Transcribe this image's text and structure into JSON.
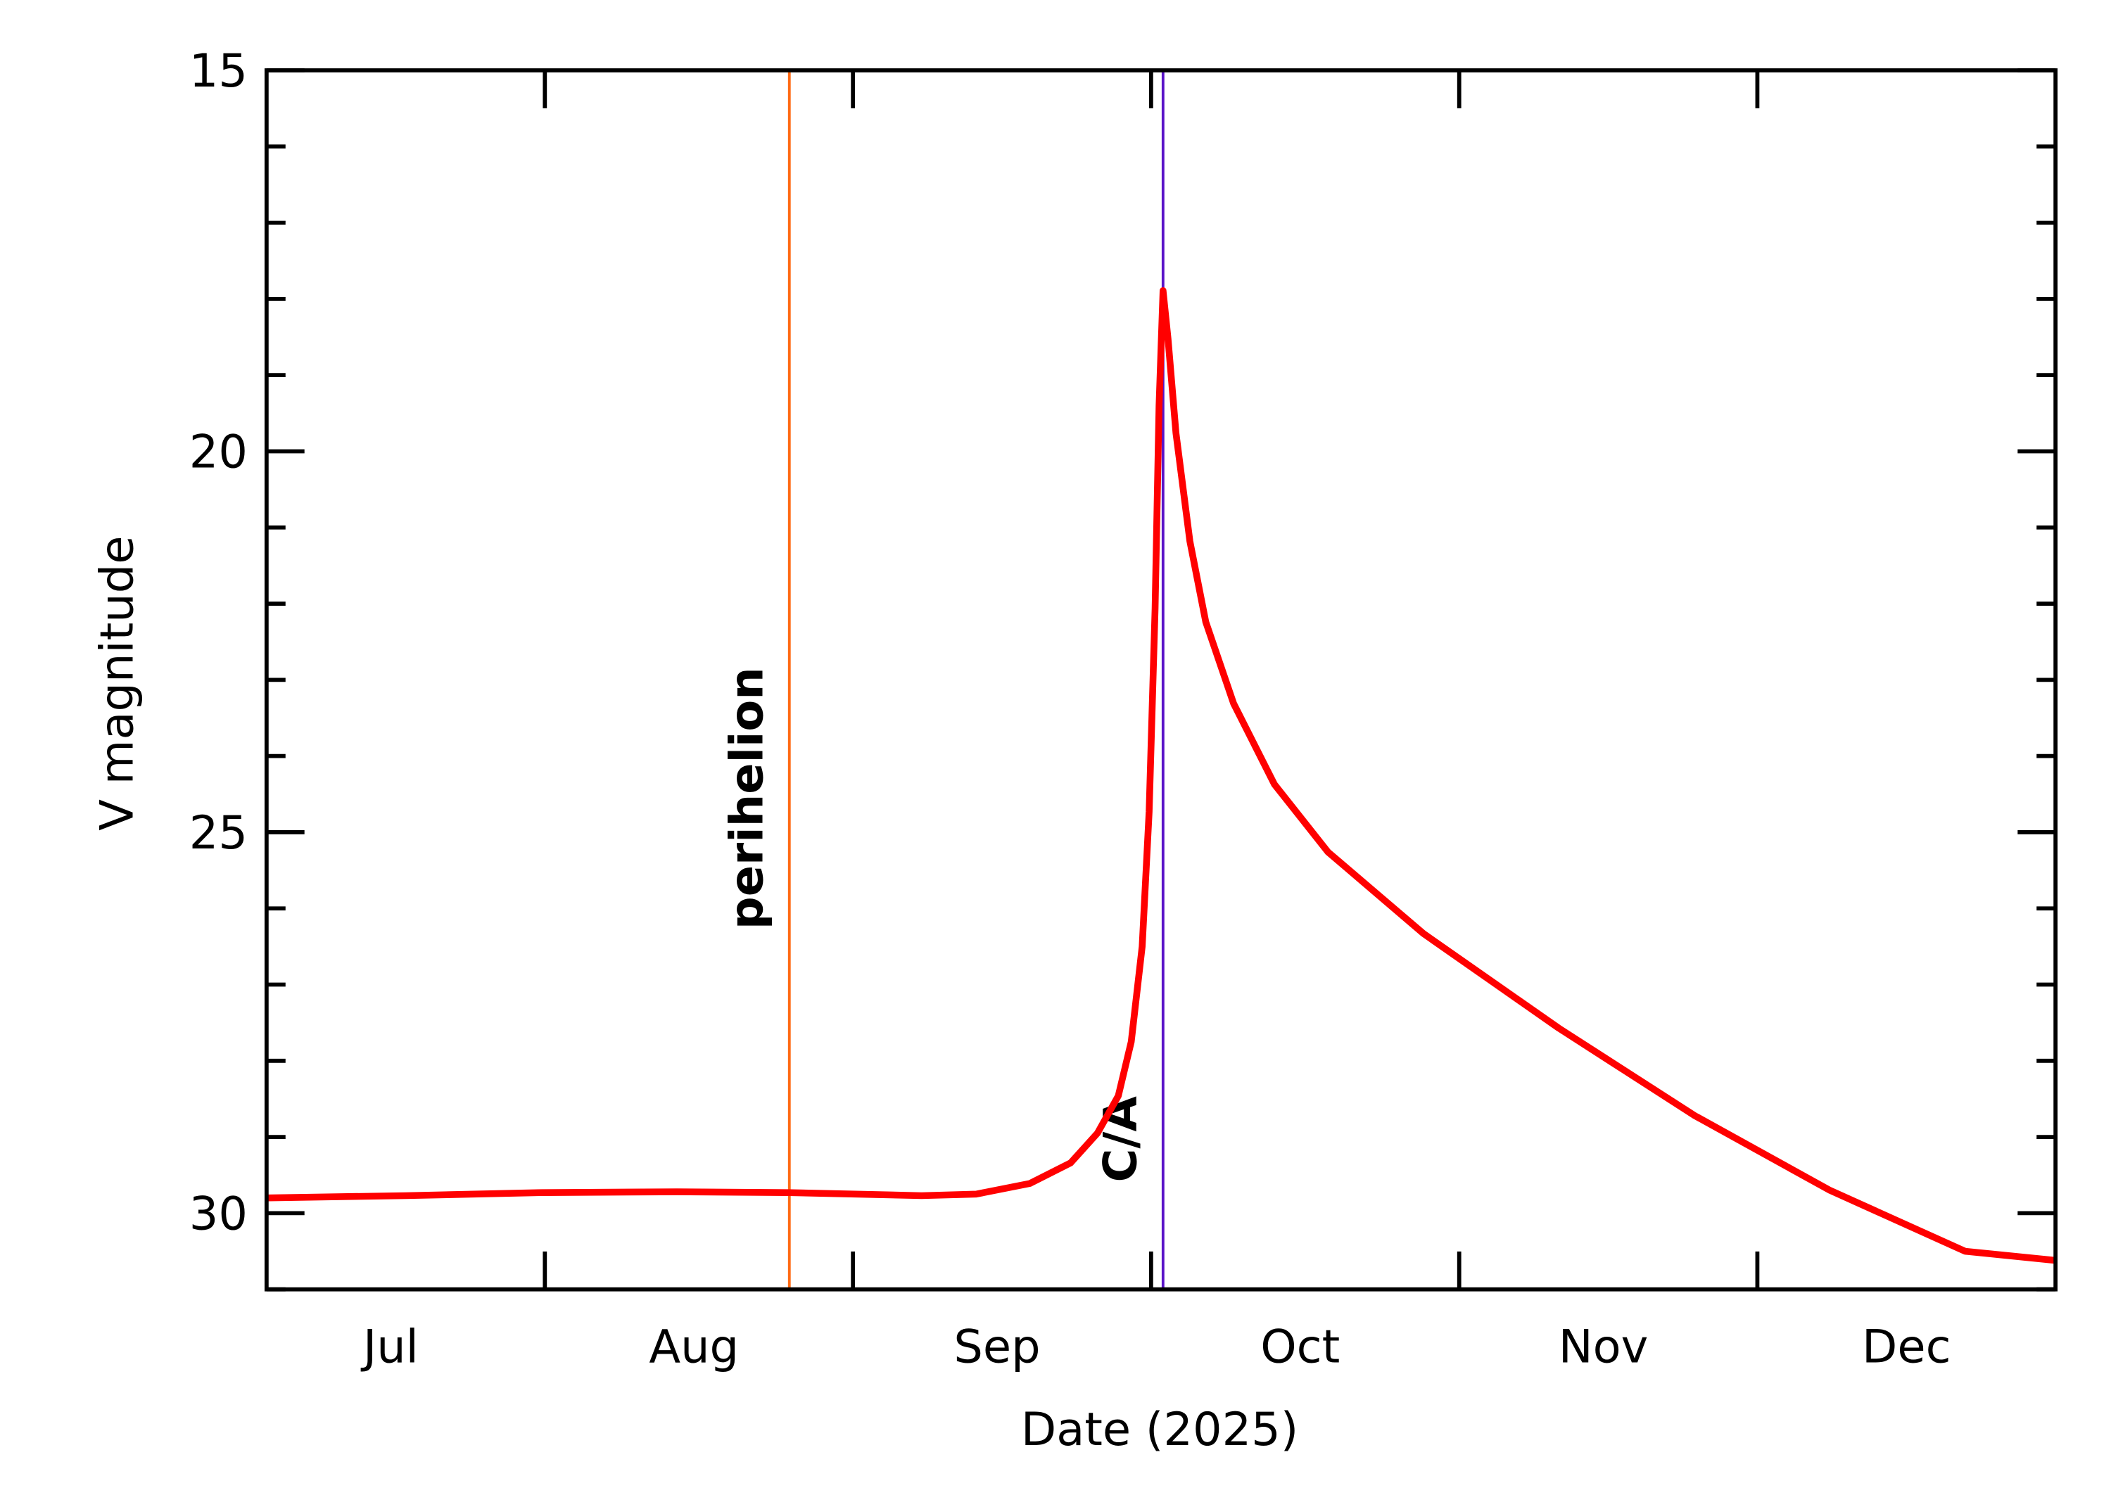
{
  "chart_data": {
    "type": "line",
    "x_label": "Date (2025)",
    "y_label": "V magnitude",
    "x": [
      185,
      199,
      212.7,
      226.3,
      237.5,
      250.9,
      256.4,
      261.8,
      265.9,
      268.6,
      270.7,
      272.0,
      273.1,
      273.8,
      274.4,
      274.8,
      275.2,
      275.7,
      276.5,
      277.9,
      279.5,
      282.3,
      286.4,
      291.8,
      301.4,
      315.0,
      328.7,
      342.3,
      355.9,
      365
    ],
    "series": [
      {
        "color": "#ff0000",
        "values": [
          29.8,
          29.77,
          29.73,
          29.72,
          29.73,
          29.77,
          29.75,
          29.61,
          29.34,
          28.95,
          28.46,
          27.75,
          26.5,
          24.73,
          22.07,
          19.4,
          17.89,
          18.52,
          19.76,
          21.18,
          22.24,
          23.31,
          24.37,
          25.26,
          26.33,
          27.57,
          28.72,
          29.7,
          30.5,
          30.62
        ]
      }
    ],
    "xlim": [
      185,
      365
    ],
    "xticks": [
      {
        "value": 197.5,
        "label": "Jul"
      },
      {
        "value": 228,
        "label": "Aug"
      },
      {
        "value": 258.5,
        "label": "Sep"
      },
      {
        "value": 289,
        "label": "Oct"
      },
      {
        "value": 319.5,
        "label": "Nov"
      },
      {
        "value": 350,
        "label": "Dec"
      }
    ],
    "x_tick_marks": [
      213,
      244,
      274,
      305,
      335
    ],
    "ylim": [
      15,
      31
    ],
    "y_inverted": true,
    "yticks": [
      15,
      20,
      25,
      30
    ],
    "y_minor_ticks": [
      16,
      17,
      18,
      19,
      21,
      22,
      23,
      24,
      26,
      27,
      28,
      29,
      31
    ],
    "annotations": [
      {
        "label": "perihelion",
        "x": 237.6,
        "color": "#ff6a13"
      },
      {
        "label": "C/A",
        "x": 275.2,
        "color": "#5a14c8"
      }
    ]
  }
}
